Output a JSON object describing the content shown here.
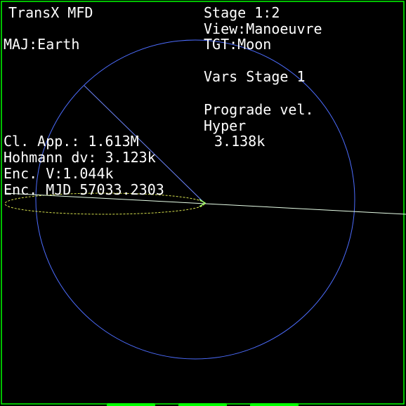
{
  "colors": {
    "background": "#000000",
    "frame": "#00ff00",
    "text": "#ffffff",
    "orbit_circle": "#4d6dff",
    "radius_line": "#6f88ff",
    "ellipse": "#d7e24e",
    "trajectory": "#e8ffe8",
    "marker": "#9cff6b"
  },
  "header": {
    "title": "TransX MFD",
    "stage": "Stage 1:2",
    "view": "View:Manoeuvre",
    "major_body": "MAJ:Earth",
    "target": "TGT:Moon"
  },
  "vars": {
    "heading": "Vars Stage 1",
    "label": "Prograde vel.",
    "mode": "Hyper",
    "value": "3.138k"
  },
  "readouts": {
    "closest_approach": "Cl. App.: 1.613M",
    "hohmann_dv": "Hohmann dv: 3.123k",
    "encounter_velocity": "Enc. V:1.044k",
    "encounter_mjd": "Enc. MJD 57033.2303"
  },
  "icons": {
    "marker": "chevron-marker-icon"
  }
}
